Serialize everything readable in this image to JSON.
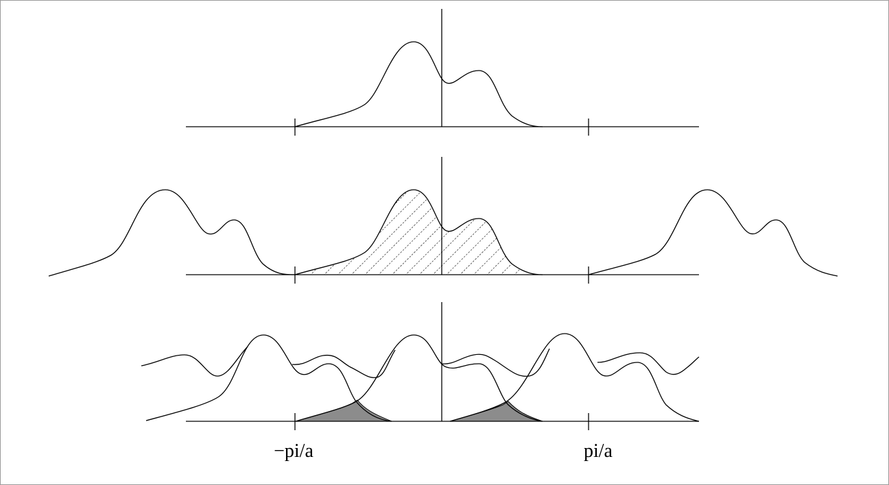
{
  "labels": {
    "left_tick": "−pi/a",
    "right_tick": "pi/a"
  },
  "colors": {
    "stroke": "#000000",
    "shaded": "#8c8c8c",
    "hatch": "#000000"
  },
  "panels": [
    {
      "name": "original-spectrum"
    },
    {
      "name": "periodic-replicas-hatched"
    },
    {
      "name": "overlapping-replicas-aliasing"
    }
  ]
}
